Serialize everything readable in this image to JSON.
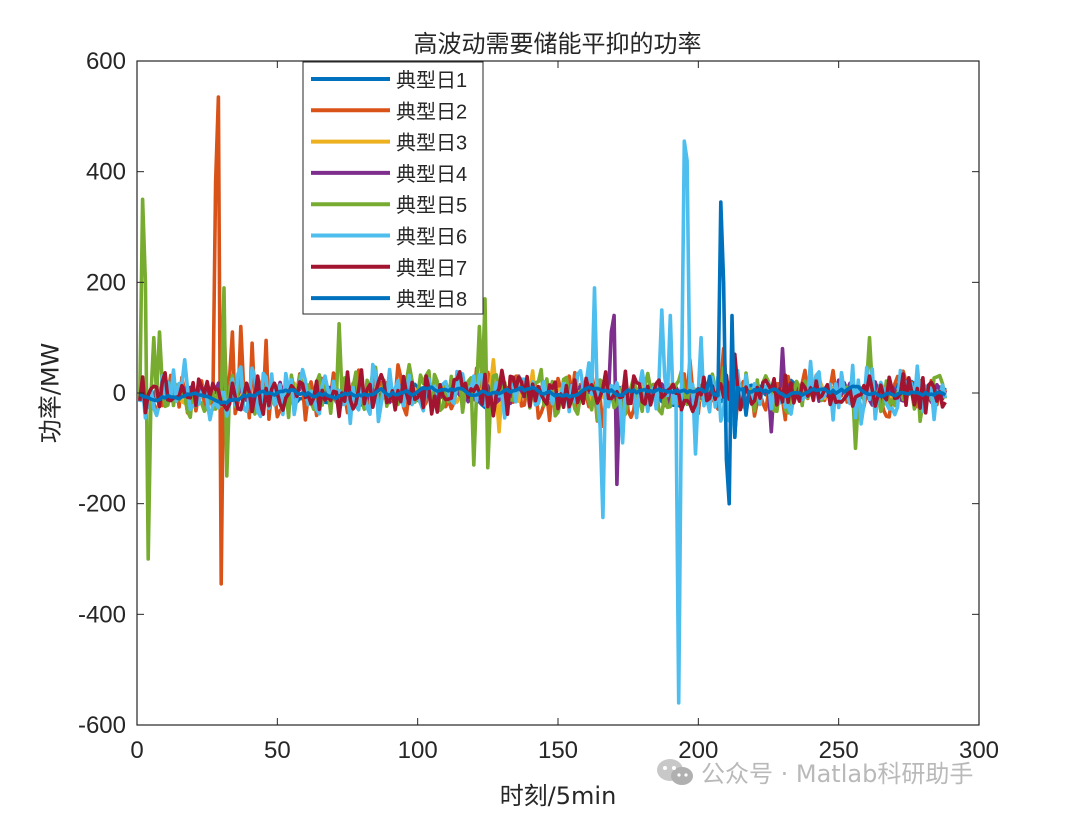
{
  "chart_data": {
    "type": "line",
    "title": "高波动需要储能平抑的功率",
    "xlabel": "时刻/5min",
    "ylabel": "功率/MW",
    "xlim": [
      0,
      300
    ],
    "ylim": [
      -600,
      600
    ],
    "xticks": [
      0,
      50,
      100,
      150,
      200,
      250,
      300
    ],
    "yticks": [
      -600,
      -400,
      -200,
      0,
      200,
      400,
      600
    ],
    "grid": false,
    "n_points": 288,
    "legend": {
      "position": "upper-left (inside, x≈30-45)",
      "entries": [
        "典型日1",
        "典型日2",
        "典型日3",
        "典型日4",
        "典型日5",
        "典型日6",
        "典型日7",
        "典型日8"
      ]
    },
    "series": [
      {
        "name": "典型日1",
        "color": "#0072BD",
        "baseline_amp": 20,
        "seed": 11,
        "spikes": []
      },
      {
        "name": "典型日2",
        "color": "#D95319",
        "baseline_amp": 45,
        "seed": 23,
        "spikes": [
          [
            27,
            380
          ],
          [
            28,
            535
          ],
          [
            29,
            -345
          ],
          [
            30,
            120
          ],
          [
            33,
            110
          ],
          [
            36,
            120
          ],
          [
            40,
            90
          ],
          [
            45,
            95
          ],
          [
            165,
            -60
          ],
          [
            196,
            60
          ],
          [
            208,
            80
          ],
          [
            212,
            -70
          ]
        ]
      },
      {
        "name": "典型日3",
        "color": "#EDB120",
        "baseline_amp": 18,
        "seed": 37,
        "spikes": [
          [
            126,
            60
          ],
          [
            128,
            -70
          ],
          [
            140,
            40
          ]
        ]
      },
      {
        "name": "典型日4",
        "color": "#7E2F8E",
        "baseline_amp": 20,
        "seed": 41,
        "spikes": [
          [
            169,
            140
          ],
          [
            170,
            -165
          ],
          [
            168,
            110
          ],
          [
            172,
            -40
          ],
          [
            225,
            -70
          ],
          [
            229,
            80
          ]
        ]
      },
      {
        "name": "典型日5",
        "color": "#77AC30",
        "baseline_amp": 45,
        "seed": 53,
        "spikes": [
          [
            1,
            350
          ],
          [
            2,
            200
          ],
          [
            3,
            -300
          ],
          [
            5,
            100
          ],
          [
            7,
            110
          ],
          [
            30,
            190
          ],
          [
            31,
            -150
          ],
          [
            71,
            125
          ],
          [
            119,
            -130
          ],
          [
            121,
            120
          ],
          [
            123,
            170
          ],
          [
            124,
            -135
          ],
          [
            255,
            -100
          ],
          [
            260,
            100
          ]
        ]
      },
      {
        "name": "典型日6",
        "color": "#4DBEEE",
        "baseline_amp": 50,
        "seed": 67,
        "spikes": [
          [
            16,
            60
          ],
          [
            162,
            190
          ],
          [
            164,
            -60
          ],
          [
            165,
            -225
          ],
          [
            172,
            -90
          ],
          [
            179,
            40
          ],
          [
            186,
            150
          ],
          [
            189,
            140
          ],
          [
            192,
            -560
          ],
          [
            194,
            455
          ],
          [
            195,
            420
          ],
          [
            198,
            -110
          ],
          [
            200,
            100
          ],
          [
            210,
            -50
          ],
          [
            212,
            -80
          ]
        ]
      },
      {
        "name": "典型日7",
        "color": "#A2142F",
        "baseline_amp": 40,
        "seed": 79,
        "spikes": [
          [
            212,
            70
          ],
          [
            214,
            -30
          ]
        ]
      },
      {
        "name": "典型日8",
        "color": "#0072BD",
        "baseline_amp": 10,
        "seed": 97,
        "spikes": [
          [
            203,
            30
          ],
          [
            207,
            345
          ],
          [
            208,
            200
          ],
          [
            209,
            -120
          ],
          [
            210,
            -200
          ],
          [
            211,
            140
          ],
          [
            212,
            -80
          ],
          [
            216,
            -40
          ]
        ]
      }
    ]
  },
  "watermark": {
    "text": "公众号 · Matlab科研助手",
    "icon": "wechat-icon"
  }
}
